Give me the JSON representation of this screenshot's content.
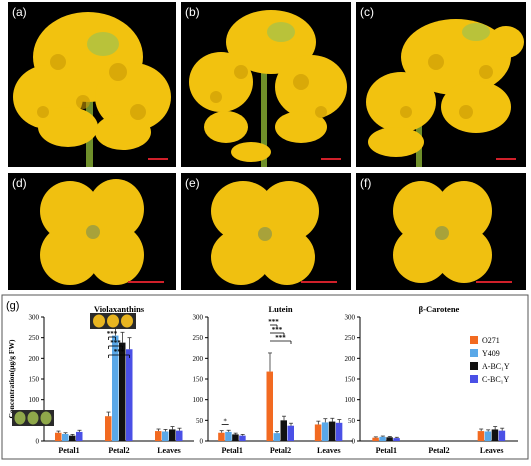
{
  "panels": {
    "a": "(a)",
    "b": "(b)",
    "c": "(c)",
    "d": "(d)",
    "e": "(e)",
    "f": "(f)",
    "g": "(g)"
  },
  "colors": {
    "petal_yellow": "#f2c20f",
    "petal_shade": "#c99a05",
    "stem_green": "#6f8f2a",
    "scale_bar": "#d0202a"
  },
  "chart_data": {
    "type": "bar",
    "ylabel": "Concentration(μg/g FW)",
    "ylim": [
      0,
      300
    ],
    "categories": [
      "Petal1",
      "Petal2",
      "Leaves"
    ],
    "series": [
      {
        "name": "O271",
        "color": "#f26a21"
      },
      {
        "name": "Y409",
        "color": "#5aa8e8"
      },
      {
        "name": "A-BC₁Y",
        "color": "#111111"
      },
      {
        "name": "C-BC₁Y",
        "color": "#4a50e6"
      }
    ],
    "groups": [
      {
        "title": "Violaxanthins",
        "values": [
          [
            20,
            17,
            13,
            22
          ],
          [
            60,
            255,
            238,
            222
          ],
          [
            24,
            23,
            28,
            25
          ]
        ],
        "errors": [
          [
            4,
            3,
            3,
            4
          ],
          [
            10,
            35,
            25,
            28
          ],
          [
            5,
            5,
            7,
            6
          ]
        ],
        "annotations": [
          "***",
          "***",
          "***"
        ]
      },
      {
        "title": "Lutein",
        "values": [
          [
            20,
            22,
            16,
            13
          ],
          [
            168,
            19,
            50,
            37
          ],
          [
            40,
            45,
            47,
            44
          ]
        ],
        "errors": [
          [
            5,
            4,
            3,
            3
          ],
          [
            45,
            4,
            10,
            6
          ],
          [
            8,
            9,
            8,
            8
          ]
        ],
        "annotations": [
          "*",
          "***",
          "***",
          "***"
        ]
      },
      {
        "title": "β-Carotene",
        "values": [
          [
            8,
            10,
            9,
            7
          ],
          [
            0,
            0,
            0,
            0
          ],
          [
            24,
            23,
            28,
            25
          ]
        ],
        "errors": [
          [
            2,
            2,
            2,
            2
          ],
          [
            0,
            0,
            0,
            0
          ],
          [
            5,
            4,
            7,
            6
          ]
        ],
        "annotations": []
      }
    ]
  }
}
